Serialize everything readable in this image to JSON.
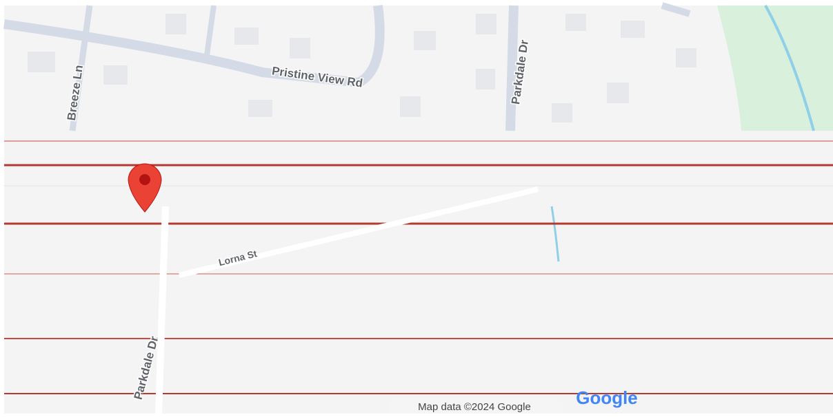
{
  "map": {
    "streets": [
      "Pristine View Rd",
      "Breeze Ln",
      "Parkdale Dr",
      "Parkdale Dr",
      "Lorna St"
    ],
    "attribution": "Map data ©2024 Google",
    "logo": "Google"
  }
}
